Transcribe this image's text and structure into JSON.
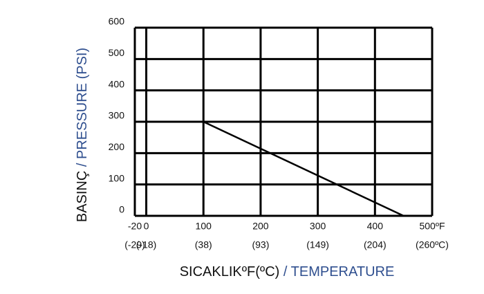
{
  "chart_data": {
    "type": "line",
    "y_label_parts": [
      {
        "text": "BASINÇ",
        "color": "#111111"
      },
      {
        "text": " / PRESSURE (PSI)",
        "color": "#2f4f8f"
      }
    ],
    "x_label_parts": [
      {
        "text": "SICAKLIKºF(ºC)",
        "color": "#111111"
      },
      {
        "text": " / TEMPERATURE",
        "color": "#2f4f8f"
      }
    ],
    "xlim": [
      -20,
      500
    ],
    "ylim": [
      0,
      600
    ],
    "xticks": [
      -20,
      0,
      100,
      200,
      300,
      400,
      {
        "value": 500,
        "label": "500ºF"
      }
    ],
    "xticks_celsius": [
      "(-29)",
      "(-18)",
      "(38)",
      "(93)",
      "(149)",
      "(204)",
      "(260ºC)"
    ],
    "yticks": [
      0,
      100,
      200,
      300,
      400,
      500,
      600
    ],
    "grid": true,
    "series": [
      {
        "color": "#000000",
        "x": [
          100,
          450
        ],
        "values": [
          300,
          0
        ]
      }
    ]
  }
}
